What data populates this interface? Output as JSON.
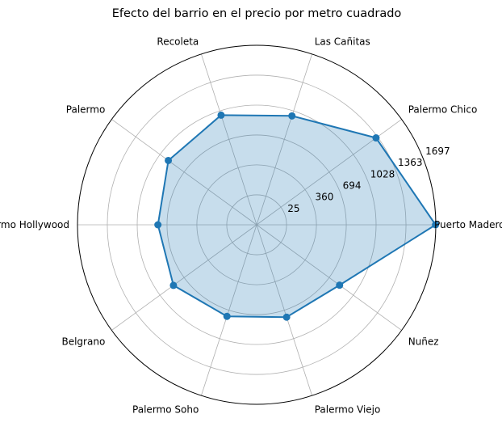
{
  "chart_data": {
    "type": "radar",
    "title": "Efecto del barrio en el precio por metro cuadrado",
    "categories": [
      "Puerto Madero",
      "Palermo Chico",
      "Las Cañitas",
      "Recoleta",
      "Palermo",
      "Palermo Hollywood",
      "Belgrano",
      "Palermo Soho",
      "Palermo Viejo",
      "Nuñez"
    ],
    "values": [
      1694,
      1343,
      970,
      979,
      913,
      796,
      842,
      766,
      776,
      838
    ],
    "r_ticks": [
      25,
      360,
      694,
      1028,
      1363,
      1697
    ],
    "r_tick_labels": [
      "25",
      "360",
      "694",
      "1028",
      "1363",
      "1697"
    ],
    "r_range": [
      -310,
      1697
    ],
    "grid": true,
    "colors": {
      "line": "#1f77b4",
      "fill": "#1f77b4",
      "grid": "#b0b0b0",
      "frame": "#000000"
    }
  }
}
